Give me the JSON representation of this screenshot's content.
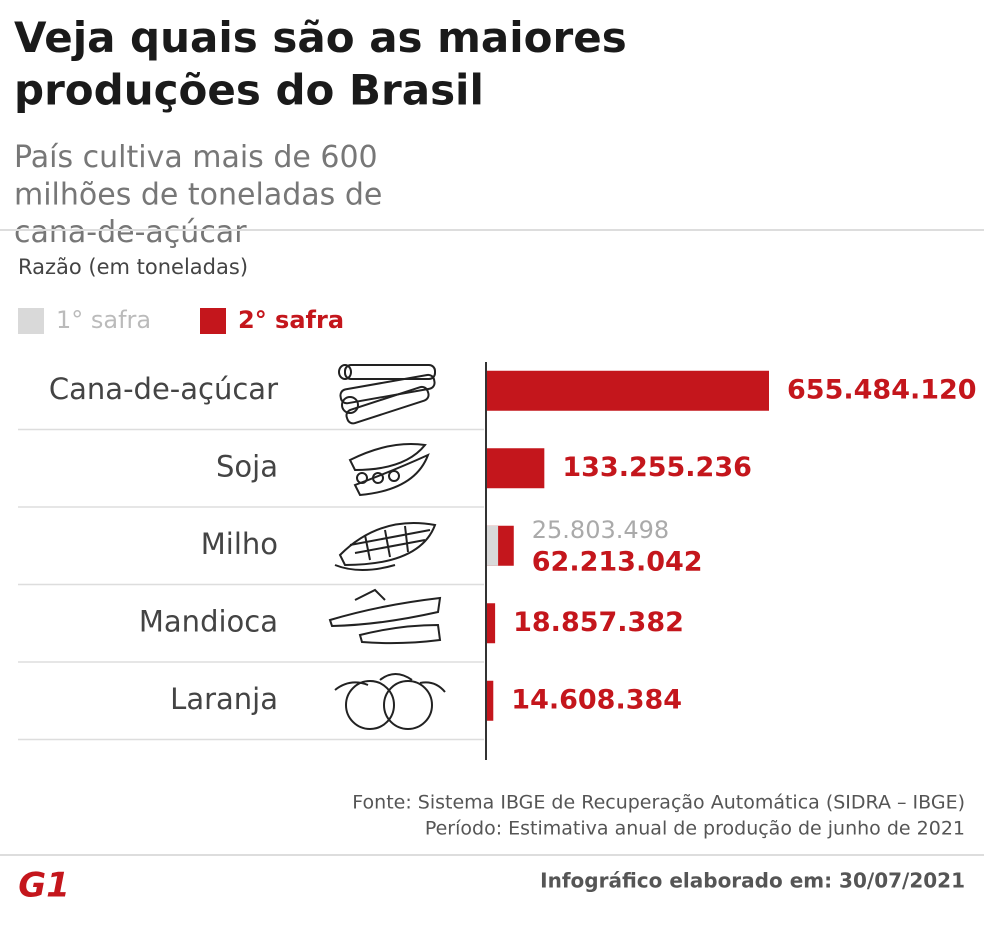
{
  "chart_data": {
    "type": "bar",
    "orientation": "horizontal",
    "title": "Veja quais são as maiores produções do Brasil",
    "subtitle": "País cultiva mais de 600 milhões de toneladas de cana-de-açúcar",
    "axis_label": "Razão (em toneladas)",
    "categories": [
      "Cana-de-açúcar",
      "Soja",
      "Milho",
      "Mandioca",
      "Laranja"
    ],
    "series": [
      {
        "name": "1° safra",
        "color": "#d9d9d9",
        "values": [
          null,
          null,
          25803498,
          null,
          null
        ],
        "value_labels": [
          null,
          null,
          "25.803.498",
          null,
          null
        ]
      },
      {
        "name": "2° safra",
        "color": "#c4161c",
        "values": [
          655484120,
          133255236,
          62213042,
          18857382,
          14608384
        ],
        "value_labels": [
          "655.484.120",
          "133.255.236",
          "62.213.042",
          "18.857.382",
          "14.608.384"
        ]
      }
    ],
    "source": "Fonte: Sistema IBGE de Recuperação Automática (SIDRA – IBGE)",
    "period": "Período: Estimativa anual de produção de junho de 2021",
    "footer": "Infográfico elaborado em: 30/07/2021",
    "logo": "G1"
  }
}
